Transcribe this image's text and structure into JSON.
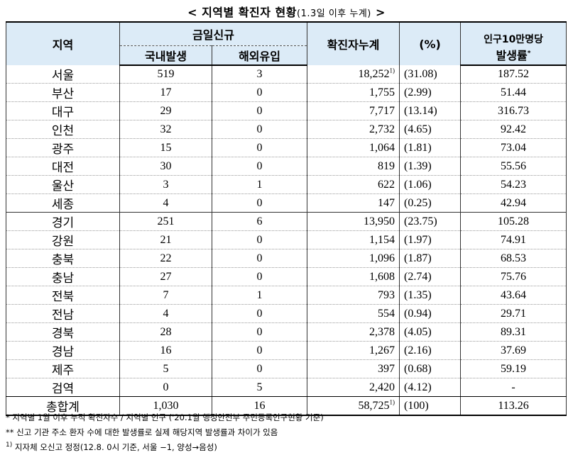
{
  "title": {
    "main": "< 지역별 확진자 현황",
    "sub": "(1.3일 이후 누계)",
    "end": " >"
  },
  "headers": {
    "region": "지역",
    "today_new": "금일신규",
    "domestic": "국내발생",
    "overseas": "해외유입",
    "cumulative": "확진자누계",
    "percent": "(%)",
    "rate_line1": "인구10만명당",
    "rate_line2": "발생률",
    "rate_mark": "*"
  },
  "rows": [
    {
      "region": "서울",
      "domestic": "519",
      "overseas": "3",
      "cumulative": "18,252",
      "mark": "1)",
      "percent": "(31.08)",
      "rate": "187.52"
    },
    {
      "region": "부산",
      "domestic": "17",
      "overseas": "0",
      "cumulative": "1,755",
      "mark": "",
      "percent": "(2.99)",
      "rate": "51.44"
    },
    {
      "region": "대구",
      "domestic": "29",
      "overseas": "0",
      "cumulative": "7,717",
      "mark": "",
      "percent": "(13.14)",
      "rate": "316.73"
    },
    {
      "region": "인천",
      "domestic": "32",
      "overseas": "0",
      "cumulative": "2,732",
      "mark": "",
      "percent": "(4.65)",
      "rate": "92.42"
    },
    {
      "region": "광주",
      "domestic": "15",
      "overseas": "0",
      "cumulative": "1,064",
      "mark": "",
      "percent": "(1.81)",
      "rate": "73.04"
    },
    {
      "region": "대전",
      "domestic": "30",
      "overseas": "0",
      "cumulative": "819",
      "mark": "",
      "percent": "(1.39)",
      "rate": "55.56"
    },
    {
      "region": "울산",
      "domestic": "3",
      "overseas": "1",
      "cumulative": "622",
      "mark": "",
      "percent": "(1.06)",
      "rate": "54.23"
    },
    {
      "region": "세종",
      "domestic": "4",
      "overseas": "0",
      "cumulative": "147",
      "mark": "",
      "percent": "(0.25)",
      "rate": "42.94"
    },
    {
      "region": "경기",
      "domestic": "251",
      "overseas": "6",
      "cumulative": "13,950",
      "mark": "",
      "percent": "(23.75)",
      "rate": "105.28"
    },
    {
      "region": "강원",
      "domestic": "21",
      "overseas": "0",
      "cumulative": "1,154",
      "mark": "",
      "percent": "(1.97)",
      "rate": "74.91"
    },
    {
      "region": "충북",
      "domestic": "22",
      "overseas": "0",
      "cumulative": "1,096",
      "mark": "",
      "percent": "(1.87)",
      "rate": "68.53"
    },
    {
      "region": "충남",
      "domestic": "27",
      "overseas": "0",
      "cumulative": "1,608",
      "mark": "",
      "percent": "(2.74)",
      "rate": "75.76"
    },
    {
      "region": "전북",
      "domestic": "7",
      "overseas": "1",
      "cumulative": "793",
      "mark": "",
      "percent": "(1.35)",
      "rate": "43.64"
    },
    {
      "region": "전남",
      "domestic": "4",
      "overseas": "0",
      "cumulative": "554",
      "mark": "",
      "percent": "(0.94)",
      "rate": "29.71"
    },
    {
      "region": "경북",
      "domestic": "28",
      "overseas": "0",
      "cumulative": "2,378",
      "mark": "",
      "percent": "(4.05)",
      "rate": "89.31"
    },
    {
      "region": "경남",
      "domestic": "16",
      "overseas": "0",
      "cumulative": "1,267",
      "mark": "",
      "percent": "(2.16)",
      "rate": "37.69"
    },
    {
      "region": "제주",
      "domestic": "5",
      "overseas": "0",
      "cumulative": "397",
      "mark": "",
      "percent": "(0.68)",
      "rate": "59.19"
    },
    {
      "region": "검역",
      "domestic": "0",
      "overseas": "5",
      "cumulative": "2,420",
      "mark": "",
      "percent": "(4.12)",
      "rate": "-"
    }
  ],
  "total": {
    "region": "총합계",
    "domestic": "1,030",
    "overseas": "16",
    "cumulative": "58,725",
    "mark": "1)",
    "percent": "(100)",
    "rate": "113.26"
  },
  "notes": [
    "* 지역별 1월 이후 누적 확진자수 / 지역별 인구 ('20.1월 행정안전부 주민등록인구현황 기준)",
    "** 신고 기관 주소 환자 수에 대한 발생률로 실제 해당지역 발생률과 차이가 있음",
    "지자체 오신고 정정(12.8. 0시 기준, 서울 −1, 양성→음성)"
  ],
  "note3_mark": "1)"
}
